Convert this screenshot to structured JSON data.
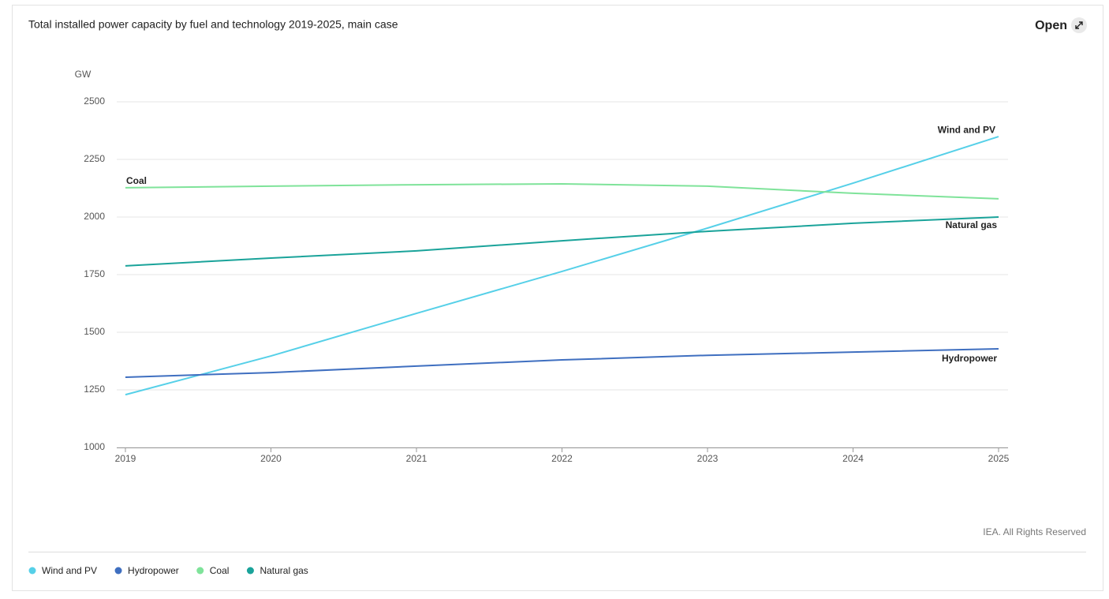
{
  "chart_data": {
    "type": "line",
    "title": "Total installed power capacity by fuel and technology 2019-2025, main case",
    "y_label": "GW",
    "categories": [
      "2019",
      "2020",
      "2021",
      "2022",
      "2023",
      "2024",
      "2025"
    ],
    "series": [
      {
        "name": "Wind and PV",
        "color": "#56d0e8",
        "values": [
          1229,
          1397,
          1582,
          1764,
          1952,
          2147,
          2349
        ]
      },
      {
        "name": "Hydropower",
        "color": "#3f6fc0",
        "values": [
          1305,
          1325,
          1353,
          1380,
          1400,
          1414,
          1428
        ]
      },
      {
        "name": "Coal",
        "color": "#7fe39a",
        "values": [
          2127,
          2134,
          2140,
          2144,
          2134,
          2103,
          2079
        ]
      },
      {
        "name": "Natural gas",
        "color": "#1aa39a",
        "values": [
          1788,
          1822,
          1853,
          1897,
          1938,
          1973,
          2000
        ]
      }
    ],
    "ylim": [
      1000,
      2500
    ],
    "yticks": [
      1000,
      1250,
      1500,
      1750,
      2000,
      2250,
      2500
    ],
    "grid": true,
    "legend": "bottom"
  },
  "open_label": "Open",
  "credit": "IEA. All Rights Reserved"
}
